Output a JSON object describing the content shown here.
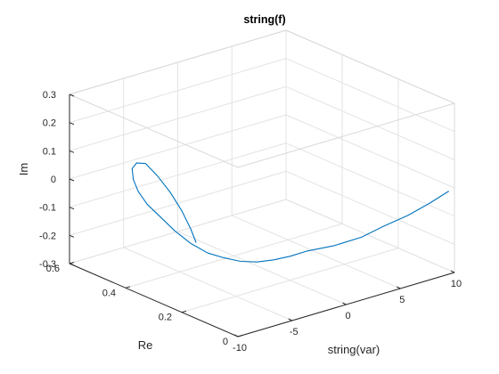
{
  "chart_data": {
    "type": "line",
    "title": "string(f)",
    "xlabel": "string(var)",
    "ylabel": "Re",
    "zlabel": "Im",
    "xlim": [
      -10,
      10
    ],
    "ylim": [
      0,
      0.6
    ],
    "zlim": [
      -0.3,
      0.3
    ],
    "x_ticks": [
      -10,
      -5,
      0,
      5,
      10
    ],
    "x_tick_labels": [
      "-10",
      "-5",
      "0",
      "5",
      "10"
    ],
    "y_ticks": [
      0,
      0.2,
      0.4,
      0.6
    ],
    "y_tick_labels": [
      "0",
      "0.2",
      "0.4",
      "0.6"
    ],
    "z_ticks": [
      -0.3,
      -0.2,
      -0.1,
      0,
      0.1,
      0.2,
      0.3
    ],
    "z_tick_labels": [
      "-0.3",
      "-0.2",
      "-0.1",
      "0",
      "0.1",
      "0.2",
      "0.3"
    ],
    "grid": true,
    "box": true,
    "series": [
      {
        "color": "#0072bd",
        "x": [
          10,
          8.5,
          7,
          5.5,
          4,
          2.5,
          1,
          0,
          -1,
          -2,
          -3,
          -4,
          -5,
          -5.8,
          -6.5,
          -7,
          -7.5,
          -7.8,
          -8,
          -8.1,
          -8.2,
          -8.15,
          -8.05,
          -7.95,
          -7.9,
          -7.88,
          -7.9
        ],
        "y": [
          0.02,
          0.03,
          0.05,
          0.08,
          0.1,
          0.14,
          0.18,
          0.2,
          0.22,
          0.24,
          0.26,
          0.28,
          0.3,
          0.33,
          0.36,
          0.39,
          0.42,
          0.44,
          0.45,
          0.45,
          0.43,
          0.4,
          0.36,
          0.32,
          0.28,
          0.25,
          0.23
        ],
        "z": [
          -0.02,
          -0.05,
          -0.085,
          -0.12,
          -0.15,
          -0.18,
          -0.2,
          -0.215,
          -0.225,
          -0.23,
          -0.225,
          -0.21,
          -0.19,
          -0.16,
          -0.12,
          -0.08,
          -0.04,
          0.0,
          0.04,
          0.08,
          0.11,
          0.12,
          0.09,
          0.05,
          0.0,
          -0.05,
          -0.09
        ]
      }
    ]
  }
}
